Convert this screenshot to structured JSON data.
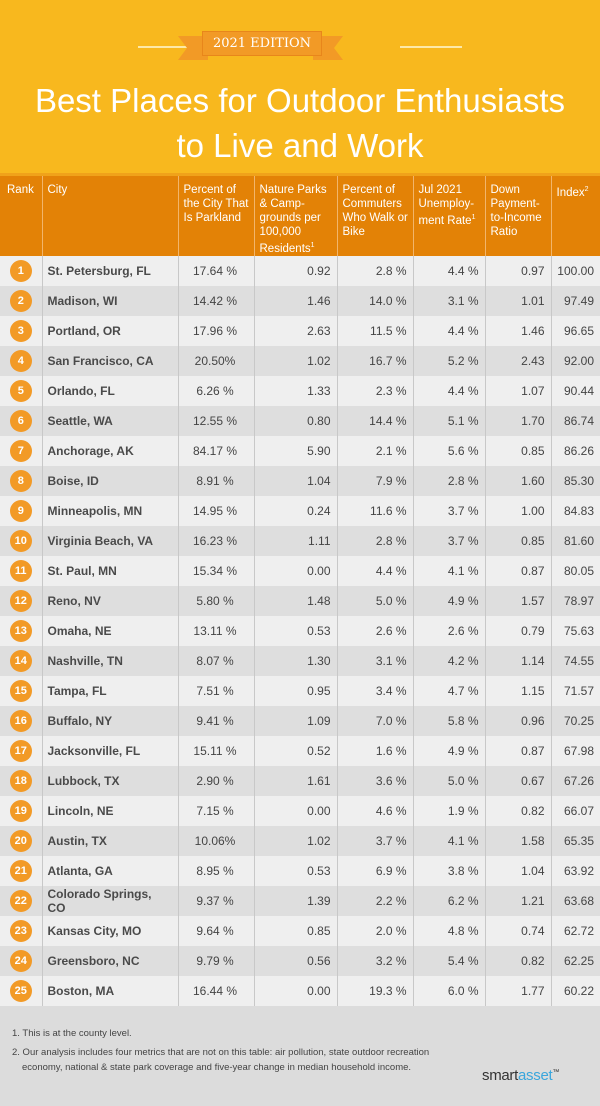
{
  "header": {
    "edition_badge": "2021 EDITION",
    "title_line1": "Best Places for Outdoor Enthusiasts",
    "title_line2": "to Live and Work"
  },
  "colors": {
    "hero_bg": "#f8b81e",
    "header_bg": "#e38206",
    "badge": "#f29a26",
    "row_light": "#efefef",
    "row_dark": "#dedede",
    "brand_accent": "#3aa6dc"
  },
  "table": {
    "columns": [
      {
        "label": "Rank"
      },
      {
        "label": "City"
      },
      {
        "label": "Percent of the City That Is Parkland"
      },
      {
        "label": "Nature Parks & Camp-grounds per 100,000 Residents",
        "footnote": "1"
      },
      {
        "label": "Percent of Commuters Who Walk or Bike"
      },
      {
        "label": "Jul 2021 Unemploy-ment Rate",
        "footnote": "1"
      },
      {
        "label": "Down Payment-to-Income Ratio"
      },
      {
        "label": "Index",
        "footnote": "2"
      }
    ],
    "rows": [
      {
        "rank": "1",
        "city": "St. Petersburg, FL",
        "parkland": "17.64 %",
        "nature_parks": "0.92",
        "walk_bike": "2.8 %",
        "unemployment": "4.4 %",
        "down_payment": "0.97",
        "index": "100.00"
      },
      {
        "rank": "2",
        "city": "Madison, WI",
        "parkland": "14.42 %",
        "nature_parks": "1.46",
        "walk_bike": "14.0 %",
        "unemployment": "3.1 %",
        "down_payment": "1.01",
        "index": "97.49"
      },
      {
        "rank": "3",
        "city": "Portland, OR",
        "parkland": "17.96 %",
        "nature_parks": "2.63",
        "walk_bike": "11.5 %",
        "unemployment": "4.4 %",
        "down_payment": "1.46",
        "index": "96.65"
      },
      {
        "rank": "4",
        "city": "San Francisco, CA",
        "parkland": "20.50%",
        "nature_parks": "1.02",
        "walk_bike": "16.7 %",
        "unemployment": "5.2 %",
        "down_payment": "2.43",
        "index": "92.00"
      },
      {
        "rank": "5",
        "city": "Orlando, FL",
        "parkland": "6.26  %",
        "nature_parks": "1.33",
        "walk_bike": "2.3 %",
        "unemployment": "4.4 %",
        "down_payment": "1.07",
        "index": "90.44"
      },
      {
        "rank": "6",
        "city": "Seattle, WA",
        "parkland": "12.55 %",
        "nature_parks": "0.80",
        "walk_bike": "14.4 %",
        "unemployment": "5.1 %",
        "down_payment": "1.70",
        "index": "86.74"
      },
      {
        "rank": "7",
        "city": "Anchorage, AK",
        "parkland": "84.17 %",
        "nature_parks": "5.90",
        "walk_bike": "2.1 %",
        "unemployment": "5.6 %",
        "down_payment": "0.85",
        "index": "86.26"
      },
      {
        "rank": "8",
        "city": "Boise, ID",
        "parkland": "8.91  %",
        "nature_parks": "1.04",
        "walk_bike": "7.9 %",
        "unemployment": "2.8 %",
        "down_payment": "1.60",
        "index": "85.30"
      },
      {
        "rank": "9",
        "city": "Minneapolis, MN",
        "parkland": "14.95 %",
        "nature_parks": "0.24",
        "walk_bike": "11.6 %",
        "unemployment": "3.7 %",
        "down_payment": "1.00",
        "index": "84.83"
      },
      {
        "rank": "10",
        "city": "Virginia Beach, VA",
        "parkland": "16.23 %",
        "nature_parks": "1.11",
        "walk_bike": "2.8 %",
        "unemployment": "3.7 %",
        "down_payment": "0.85",
        "index": "81.60"
      },
      {
        "rank": "11",
        "city": "St. Paul, MN",
        "parkland": "15.34 %",
        "nature_parks": "0.00",
        "walk_bike": "4.4 %",
        "unemployment": "4.1 %",
        "down_payment": "0.87",
        "index": "80.05"
      },
      {
        "rank": "12",
        "city": "Reno, NV",
        "parkland": "5.80  %",
        "nature_parks": "1.48",
        "walk_bike": "5.0 %",
        "unemployment": "4.9 %",
        "down_payment": "1.57",
        "index": "78.97"
      },
      {
        "rank": "13",
        "city": "Omaha, NE",
        "parkland": "13.11  %",
        "nature_parks": "0.53",
        "walk_bike": "2.6 %",
        "unemployment": "2.6 %",
        "down_payment": "0.79",
        "index": "75.63"
      },
      {
        "rank": "14",
        "city": "Nashville, TN",
        "parkland": "8.07  %",
        "nature_parks": "1.30",
        "walk_bike": "3.1 %",
        "unemployment": "4.2 %",
        "down_payment": "1.14",
        "index": "74.55"
      },
      {
        "rank": "15",
        "city": "Tampa, FL",
        "parkland": "7.51   %",
        "nature_parks": "0.95",
        "walk_bike": "3.4 %",
        "unemployment": "4.7 %",
        "down_payment": "1.15",
        "index": "71.57"
      },
      {
        "rank": "16",
        "city": "Buffalo, NY",
        "parkland": "9.41  %",
        "nature_parks": "1.09",
        "walk_bike": "7.0 %",
        "unemployment": "5.8 %",
        "down_payment": "0.96",
        "index": "70.25"
      },
      {
        "rank": "17",
        "city": "Jacksonville, FL",
        "parkland": "15.11  %",
        "nature_parks": "0.52",
        "walk_bike": "1.6 %",
        "unemployment": "4.9 %",
        "down_payment": "0.87",
        "index": "67.98"
      },
      {
        "rank": "18",
        "city": "Lubbock, TX",
        "parkland": "2.90  %",
        "nature_parks": "1.61",
        "walk_bike": "3.6 %",
        "unemployment": "5.0 %",
        "down_payment": "0.67",
        "index": "67.26"
      },
      {
        "rank": "19",
        "city": "Lincoln, NE",
        "parkland": "7.15   %",
        "nature_parks": "0.00",
        "walk_bike": "4.6 %",
        "unemployment": "1.9 %",
        "down_payment": "0.82",
        "index": "66.07"
      },
      {
        "rank": "20",
        "city": "Austin, TX",
        "parkland": "10.06%",
        "nature_parks": "1.02",
        "walk_bike": "3.7 %",
        "unemployment": "4.1 %",
        "down_payment": "1.58",
        "index": "65.35"
      },
      {
        "rank": "21",
        "city": "Atlanta, GA",
        "parkland": "8.95  %",
        "nature_parks": "0.53",
        "walk_bike": "6.9 %",
        "unemployment": "3.8 %",
        "down_payment": "1.04",
        "index": "63.92"
      },
      {
        "rank": "22",
        "city": "Colorado Springs, CO",
        "parkland": "9.37  %",
        "nature_parks": "1.39",
        "walk_bike": "2.2 %",
        "unemployment": "6.2 %",
        "down_payment": "1.21",
        "index": "63.68"
      },
      {
        "rank": "23",
        "city": "Kansas City, MO",
        "parkland": "9.64  %",
        "nature_parks": "0.85",
        "walk_bike": "2.0 %",
        "unemployment": "4.8 %",
        "down_payment": "0.74",
        "index": "62.72"
      },
      {
        "rank": "24",
        "city": "Greensboro, NC",
        "parkland": "9.79  %",
        "nature_parks": "0.56",
        "walk_bike": "3.2 %",
        "unemployment": "5.4 %",
        "down_payment": "0.82",
        "index": "62.25"
      },
      {
        "rank": "25",
        "city": "Boston, MA",
        "parkland": "16.44 %",
        "nature_parks": "0.00",
        "walk_bike": "19.3 %",
        "unemployment": "6.0 %",
        "down_payment": "1.77",
        "index": "60.22"
      }
    ]
  },
  "footnotes": [
    "1. This is at the county level.",
    "2. Our analysis includes four metrics that are not on this table: air pollution, state outdoor recreation economy, national & state park coverage and five-year change in median household income."
  ],
  "brand": {
    "part1": "smart",
    "part2": "asset",
    "mark": "™"
  },
  "chart_data": {
    "type": "table",
    "title": "Best Places for Outdoor Enthusiasts to Live and Work",
    "subtitle": "2021 EDITION",
    "columns": [
      "Rank",
      "City",
      "Percent of the City That Is Parkland",
      "Nature Parks & Campgrounds per 100,000 Residents",
      "Percent of Commuters Who Walk or Bike",
      "Jul 2021 Unemployment Rate",
      "Down Payment-to-Income Ratio",
      "Index"
    ],
    "rows": [
      [
        1,
        "St. Petersburg, FL",
        17.64,
        0.92,
        2.8,
        4.4,
        0.97,
        100.0
      ],
      [
        2,
        "Madison, WI",
        14.42,
        1.46,
        14.0,
        3.1,
        1.01,
        97.49
      ],
      [
        3,
        "Portland, OR",
        17.96,
        2.63,
        11.5,
        4.4,
        1.46,
        96.65
      ],
      [
        4,
        "San Francisco, CA",
        20.5,
        1.02,
        16.7,
        5.2,
        2.43,
        92.0
      ],
      [
        5,
        "Orlando, FL",
        6.26,
        1.33,
        2.3,
        4.4,
        1.07,
        90.44
      ],
      [
        6,
        "Seattle, WA",
        12.55,
        0.8,
        14.4,
        5.1,
        1.7,
        86.74
      ],
      [
        7,
        "Anchorage, AK",
        84.17,
        5.9,
        2.1,
        5.6,
        0.85,
        86.26
      ],
      [
        8,
        "Boise, ID",
        8.91,
        1.04,
        7.9,
        2.8,
        1.6,
        85.3
      ],
      [
        9,
        "Minneapolis, MN",
        14.95,
        0.24,
        11.6,
        3.7,
        1.0,
        84.83
      ],
      [
        10,
        "Virginia Beach, VA",
        16.23,
        1.11,
        2.8,
        3.7,
        0.85,
        81.6
      ],
      [
        11,
        "St. Paul, MN",
        15.34,
        0.0,
        4.4,
        4.1,
        0.87,
        80.05
      ],
      [
        12,
        "Reno, NV",
        5.8,
        1.48,
        5.0,
        4.9,
        1.57,
        78.97
      ],
      [
        13,
        "Omaha, NE",
        13.11,
        0.53,
        2.6,
        2.6,
        0.79,
        75.63
      ],
      [
        14,
        "Nashville, TN",
        8.07,
        1.3,
        3.1,
        4.2,
        1.14,
        74.55
      ],
      [
        15,
        "Tampa, FL",
        7.51,
        0.95,
        3.4,
        4.7,
        1.15,
        71.57
      ],
      [
        16,
        "Buffalo, NY",
        9.41,
        1.09,
        7.0,
        5.8,
        0.96,
        70.25
      ],
      [
        17,
        "Jacksonville, FL",
        15.11,
        0.52,
        1.6,
        4.9,
        0.87,
        67.98
      ],
      [
        18,
        "Lubbock, TX",
        2.9,
        1.61,
        3.6,
        5.0,
        0.67,
        67.26
      ],
      [
        19,
        "Lincoln, NE",
        7.15,
        0.0,
        4.6,
        1.9,
        0.82,
        66.07
      ],
      [
        20,
        "Austin, TX",
        10.06,
        1.02,
        3.7,
        4.1,
        1.58,
        65.35
      ],
      [
        21,
        "Atlanta, GA",
        8.95,
        0.53,
        6.9,
        3.8,
        1.04,
        63.92
      ],
      [
        22,
        "Colorado Springs, CO",
        9.37,
        1.39,
        2.2,
        6.2,
        1.21,
        63.68
      ],
      [
        23,
        "Kansas City, MO",
        9.64,
        0.85,
        2.0,
        4.8,
        0.74,
        62.72
      ],
      [
        24,
        "Greensboro, NC",
        9.79,
        0.56,
        3.2,
        5.4,
        0.82,
        62.25
      ],
      [
        25,
        "Boston, MA",
        16.44,
        0.0,
        19.3,
        6.0,
        1.77,
        60.22
      ]
    ],
    "notes": [
      "1. This is at the county level.",
      "2. Our analysis includes four metrics that are not on this table: air pollution, state outdoor recreation economy, national & state park coverage and five-year change in median household income."
    ]
  }
}
